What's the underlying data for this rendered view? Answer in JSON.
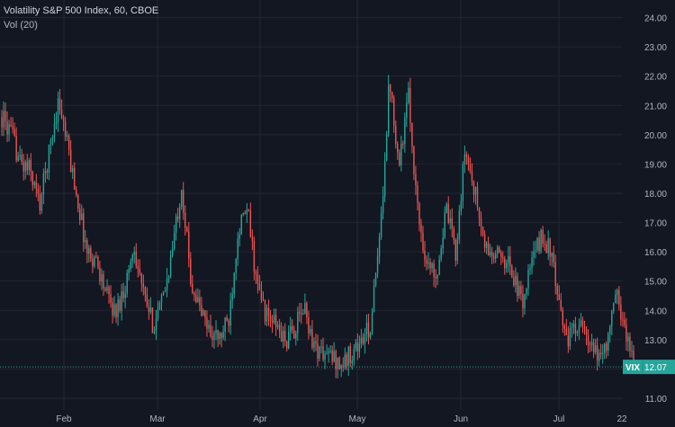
{
  "header": {
    "title": "Volatility S&P 500 Index, 60, CBOE",
    "indicator": "Vol (20)"
  },
  "colors": {
    "background": "#131722",
    "grid": "#232733",
    "up": "#26a69a",
    "down": "#ef5350",
    "axis_text": "#b2b5be",
    "badge": "#26a69a"
  },
  "chart_data": {
    "type": "candlestick",
    "symbol": "VIX",
    "last_price": "12.07",
    "last_price_value": 12.07,
    "y_ticks": [
      "11.00",
      "12.00",
      "13.00",
      "14.00",
      "15.00",
      "16.00",
      "17.00",
      "18.00",
      "19.00",
      "20.00",
      "21.00",
      "22.00",
      "23.00",
      "24.00"
    ],
    "y_tick_values": [
      11,
      12,
      13,
      14,
      15,
      16,
      17,
      18,
      19,
      20,
      21,
      22,
      23,
      24
    ],
    "ylim": [
      10.6,
      24.6
    ],
    "x_ticks": [
      "Feb",
      "Mar",
      "Apr",
      "May",
      "Jun",
      "Jul",
      "22"
    ],
    "trend_y": [
      20.6,
      20.0,
      19.0,
      18.8,
      17.6,
      19.4,
      21.2,
      19.5,
      17.8,
      16.0,
      15.7,
      14.6,
      13.9,
      14.8,
      16.2,
      14.5,
      13.5,
      14.3,
      16.0,
      18.3,
      15.0,
      14.0,
      13.3,
      13.0,
      13.7,
      16.8,
      17.4,
      14.8,
      13.8,
      13.5,
      12.9,
      13.4,
      14.1,
      12.8,
      12.5,
      12.4,
      12.1,
      12.6,
      12.9,
      13.5,
      16.5,
      22.0,
      19.0,
      21.3,
      17.3,
      15.5,
      15.3,
      17.4,
      16.0,
      19.5,
      18.1,
      16.2,
      15.8,
      15.9,
      15.3,
      14.2,
      15.6,
      16.5,
      16.1,
      13.9,
      13.0,
      13.7,
      12.8,
      12.4,
      12.9,
      14.6,
      13.2,
      12.1
    ]
  }
}
